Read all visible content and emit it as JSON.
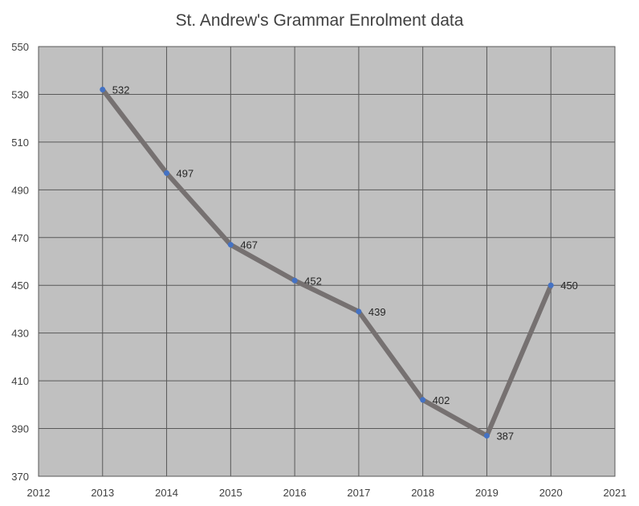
{
  "chart_data": {
    "type": "line",
    "title": "St. Andrew's Grammar Enrolment data",
    "xlabel": "",
    "ylabel": "",
    "x": [
      2013,
      2014,
      2015,
      2016,
      2017,
      2018,
      2019,
      2020
    ],
    "series": [
      {
        "values": [
          532,
          497,
          467,
          452,
          439,
          402,
          387,
          450
        ]
      }
    ],
    "data_labels": [
      "532",
      "497",
      "467",
      "452",
      "439",
      "402",
      "387",
      "450"
    ],
    "xlim": [
      2012,
      2021
    ],
    "ylim": [
      370,
      550
    ],
    "x_ticks": [
      "2012",
      "2013",
      "2014",
      "2015",
      "2016",
      "2017",
      "2018",
      "2019",
      "2020",
      "2021"
    ],
    "y_ticks": [
      "370",
      "390",
      "410",
      "430",
      "450",
      "470",
      "490",
      "510",
      "530",
      "550"
    ],
    "grid": true,
    "legend": "none",
    "colors": {
      "plot_background": "#c0c0c0",
      "grid": "#595959",
      "line": "#767171",
      "marker": "#4472c4"
    }
  }
}
